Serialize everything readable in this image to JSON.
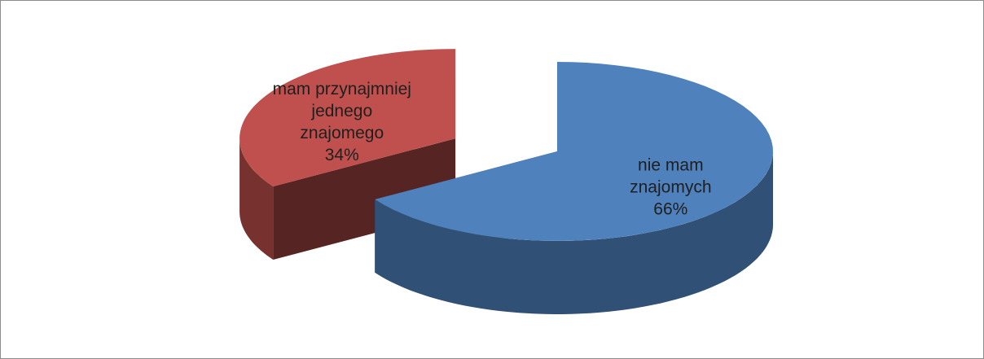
{
  "chart_data": {
    "type": "pie3d",
    "categories": [
      "mam przynajmniej\njednego\nznajomego",
      "nie mam\nznajomych"
    ],
    "values": [
      34,
      66
    ],
    "value_labels": [
      "34%",
      "66%"
    ],
    "colors": [
      "#c0504d",
      "#4f81bd"
    ],
    "exploded": [
      true,
      false
    ]
  }
}
